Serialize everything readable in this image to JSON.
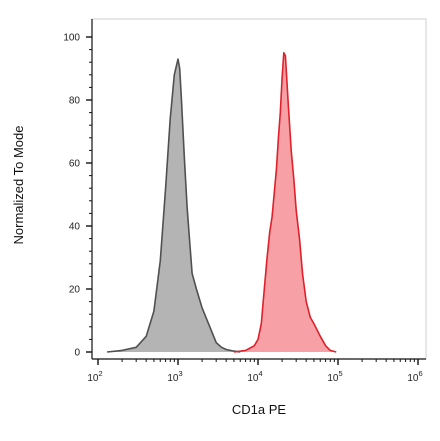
{
  "chart_data": {
    "type": "area",
    "xlabel": "CD1a PE",
    "ylabel": "Normalized To Mode",
    "x_scale": "log",
    "xlim": [
      100.0,
      1000000.0
    ],
    "ylim": [
      0,
      100
    ],
    "x_ticks": [
      {
        "value": 100,
        "base": "10",
        "exp": "2"
      },
      {
        "value": 1000,
        "base": "10",
        "exp": "3"
      },
      {
        "value": 10000,
        "base": "10",
        "exp": "4"
      },
      {
        "value": 100000,
        "base": "10",
        "exp": "5"
      },
      {
        "value": 1000000,
        "base": "10",
        "exp": "6"
      }
    ],
    "y_ticks": [
      "0",
      "20",
      "40",
      "60",
      "80",
      "100"
    ],
    "grid": false,
    "series": [
      {
        "color": "#505050",
        "fill": "#b4b4b4",
        "x": [
          130,
          200,
          300,
          400,
          500,
          600,
          700,
          800,
          900,
          1000,
          1050,
          1100,
          1200,
          1300,
          1400,
          1500,
          1700,
          2000,
          2500,
          3000,
          3500,
          4000,
          5000,
          6000
        ],
        "y": [
          0,
          0.5,
          1.5,
          5,
          13,
          29,
          52,
          74,
          88,
          93,
          90,
          81,
          62,
          46,
          35,
          25,
          20,
          14,
          8,
          3,
          1.5,
          0.8,
          0.3,
          0
        ]
      },
      {
        "color": "#e0202a",
        "fill": "#f7a0a5",
        "x": [
          5000,
          7000,
          9000,
          10000,
          11000,
          12000,
          13000,
          14000,
          15000,
          17000,
          18000,
          19000,
          20000,
          21000,
          22000,
          23000,
          24000,
          26000,
          28000,
          30000,
          33000,
          36000,
          40000,
          45000,
          50000,
          60000,
          70000,
          80000,
          95000
        ],
        "y": [
          0,
          0.5,
          2,
          4,
          9,
          20,
          30,
          38,
          43,
          58,
          68,
          76,
          87,
          95,
          94,
          86,
          78,
          64,
          55,
          45,
          36,
          25,
          16,
          11,
          9,
          5,
          2,
          0.5,
          0
        ]
      }
    ]
  }
}
